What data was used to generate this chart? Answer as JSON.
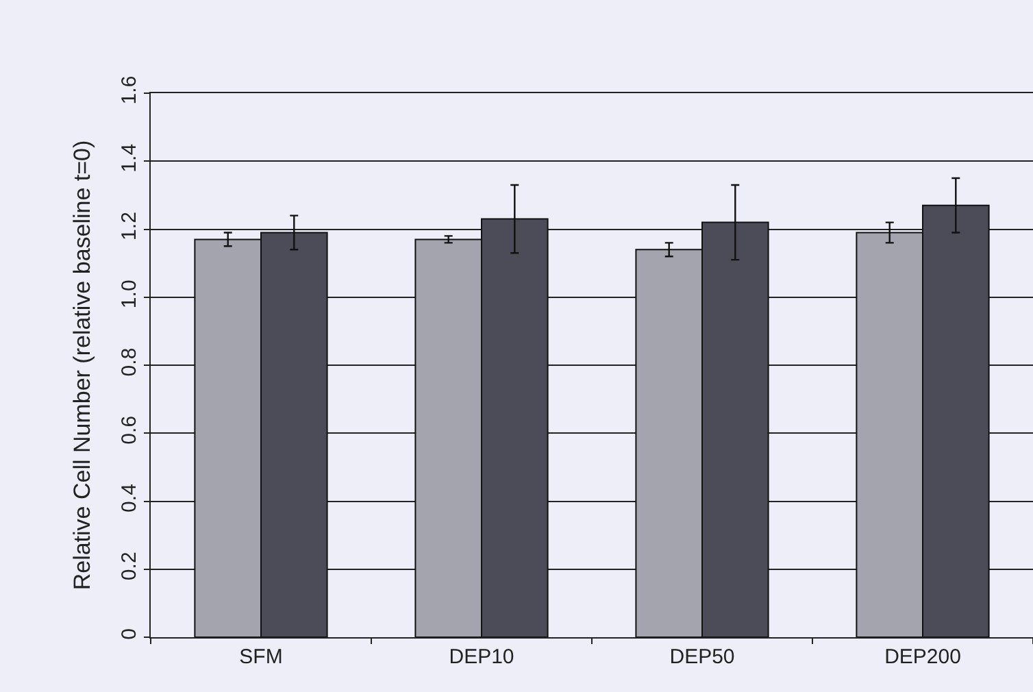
{
  "chart_data": {
    "type": "bar",
    "ylabel": "Relative Cell Number (relative baseline t=0)",
    "categories": [
      "SFM",
      "DEP10",
      "DEP50",
      "DEP200"
    ],
    "series": [
      {
        "color": "#a4a4ae",
        "values": [
          1.17,
          1.17,
          1.14,
          1.19
        ],
        "errors": [
          0.02,
          0.01,
          0.02,
          0.03
        ]
      },
      {
        "color": "#4c4c58",
        "values": [
          1.19,
          1.23,
          1.22,
          1.27
        ],
        "errors": [
          0.05,
          0.1,
          0.11,
          0.08
        ]
      }
    ],
    "ylim": [
      0,
      1.6
    ],
    "yticks": [
      0,
      0.2,
      0.4,
      0.6,
      0.8,
      {
        "value": 1,
        "label": "1.0"
      },
      1.2,
      1.4,
      1.6
    ],
    "grid": "y"
  }
}
